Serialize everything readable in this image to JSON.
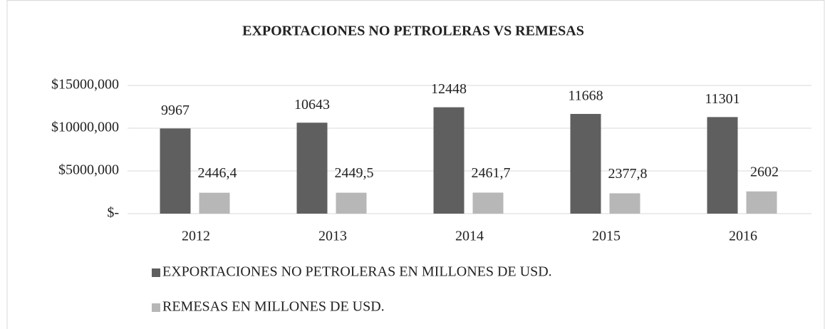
{
  "chart_data": {
    "type": "bar",
    "title": "EXPORTACIONES NO PETROLERAS VS REMESAS",
    "categories": [
      "2012",
      "2013",
      "2014",
      "2015",
      "2016"
    ],
    "series": [
      {
        "name": "EXPORTACIONES NO PETROLERAS EN MILLONES DE USD.",
        "color": "#5f5f5f",
        "values": [
          9967,
          10643,
          12448,
          11668,
          11301
        ]
      },
      {
        "name": "REMESAS  EN MILLONES DE USD.",
        "color": "#b7b7b7",
        "values": [
          2446.4,
          2449.5,
          2461.7,
          2377.8,
          2602
        ],
        "value_labels": [
          "2446,4",
          "2449,5",
          "2461,7",
          "2377,8",
          "2602"
        ]
      }
    ],
    "ylim": [
      0,
      15000
    ],
    "yticks": [
      {
        "value": 0,
        "label": "$-"
      },
      {
        "value": 5000,
        "label": "$5000,000"
      },
      {
        "value": 10000,
        "label": "$10000,000"
      },
      {
        "value": 15000,
        "label": "$15000,000"
      }
    ],
    "grid": true,
    "legend": "bottom"
  }
}
